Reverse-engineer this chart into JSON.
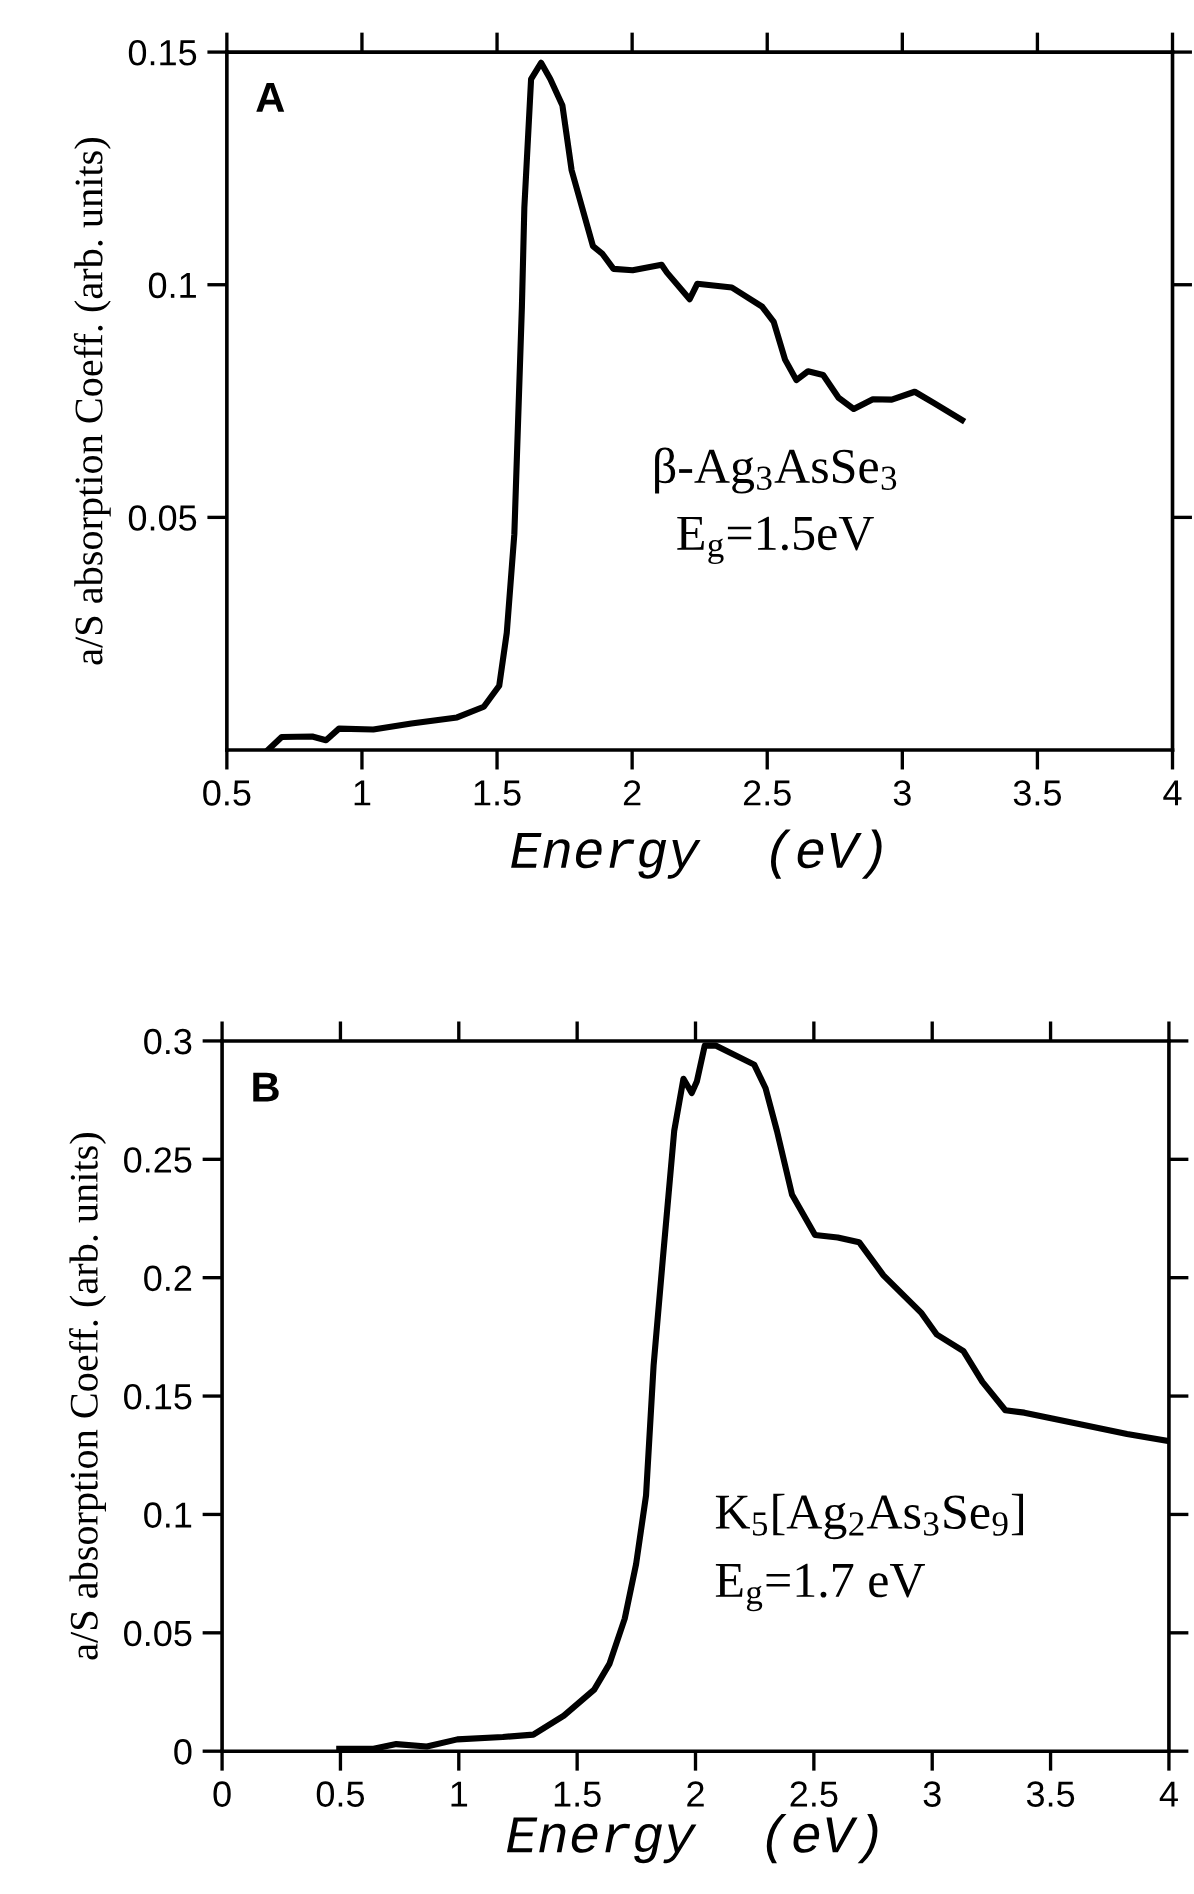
{
  "chart_data": [
    {
      "type": "line",
      "xlabel": "Energy  (eV)",
      "ylabel": "a/S absorption Coeff. (arb. units)",
      "annotations": [
        "A",
        "β-Ag$_{3}$AsSe$_{3}$",
        "E$_{g}$=1.5eV"
      ],
      "xlim": [
        0.5,
        4
      ],
      "xticks": [
        0.5,
        1,
        1.5,
        2,
        2.5,
        3,
        3.5,
        4
      ],
      "ylim": [
        0,
        0.15
      ],
      "yticks": [
        0.05,
        0.1,
        0.15
      ],
      "grid": false,
      "legend": false,
      "series": [
        {
          "color": "#000000",
          "x": [
            0.652,
            0.703,
            0.816,
            0.867,
            0.915,
            1.042,
            1.183,
            1.352,
            1.451,
            1.508,
            1.536,
            1.564,
            1.592,
            1.601,
            1.626,
            1.663,
            1.697,
            1.742,
            1.776,
            1.855,
            1.889,
            1.931,
            2.002,
            2.109,
            2.129,
            2.213,
            2.241,
            2.369,
            2.481,
            2.524,
            2.566,
            2.608,
            2.651,
            2.707,
            2.764,
            2.82,
            2.891,
            2.961,
            3.046,
            3.116,
            3.221
          ],
          "values": [
            0.0,
            0.0028,
            0.0029,
            0.0021,
            0.0046,
            0.0044,
            0.0057,
            0.007,
            0.0093,
            0.0138,
            0.0252,
            0.0464,
            0.0953,
            0.1165,
            0.1442,
            0.1477,
            0.1442,
            0.1385,
            0.1246,
            0.1083,
            0.1067,
            0.1034,
            0.1031,
            0.1043,
            0.1026,
            0.0969,
            0.1002,
            0.0994,
            0.0953,
            0.092,
            0.0839,
            0.0795,
            0.0814,
            0.0806,
            0.0757,
            0.0733,
            0.0754,
            0.0753,
            0.077,
            0.0746,
            0.0709
          ]
        }
      ]
    },
    {
      "type": "line",
      "xlabel": "Energy  (eV)",
      "ylabel": "a/S absorption Coeff. (arb. units)",
      "annotations": [
        "B",
        "K$_{5}$[Ag$_{2}$As$_{3}$Se$_{9}$]",
        "E$_{g}$=1.7 eV"
      ],
      "xlim": [
        0,
        4
      ],
      "xticks": [
        0,
        0.5,
        1,
        1.5,
        2,
        2.5,
        3,
        3.5,
        4
      ],
      "ylim": [
        0,
        0.3
      ],
      "yticks": [
        0,
        0.05,
        0.1,
        0.15,
        0.2,
        0.25,
        0.3
      ],
      "grid": false,
      "legend": false,
      "series": [
        {
          "color": "#000000",
          "x": [
            0.495,
            0.64,
            0.736,
            0.865,
            0.994,
            1.186,
            1.315,
            1.444,
            1.572,
            1.637,
            1.701,
            1.749,
            1.791,
            1.823,
            1.862,
            1.91,
            1.949,
            1.984,
            2.006,
            2.039,
            2.087,
            2.248,
            2.296,
            2.344,
            2.408,
            2.505,
            2.601,
            2.691,
            2.794,
            2.955,
            3.019,
            3.132,
            3.212,
            3.309,
            3.389,
            3.63,
            3.823,
            4.0
          ],
          "values": [
            0.001,
            0.001,
            0.003,
            0.002,
            0.005,
            0.006,
            0.007,
            0.015,
            0.026,
            0.037,
            0.056,
            0.079,
            0.108,
            0.163,
            0.208,
            0.262,
            0.284,
            0.278,
            0.283,
            0.298,
            0.298,
            0.29,
            0.28,
            0.262,
            0.235,
            0.218,
            0.217,
            0.215,
            0.201,
            0.185,
            0.176,
            0.169,
            0.156,
            0.144,
            0.143,
            0.138,
            0.134,
            0.131
          ]
        }
      ]
    }
  ]
}
